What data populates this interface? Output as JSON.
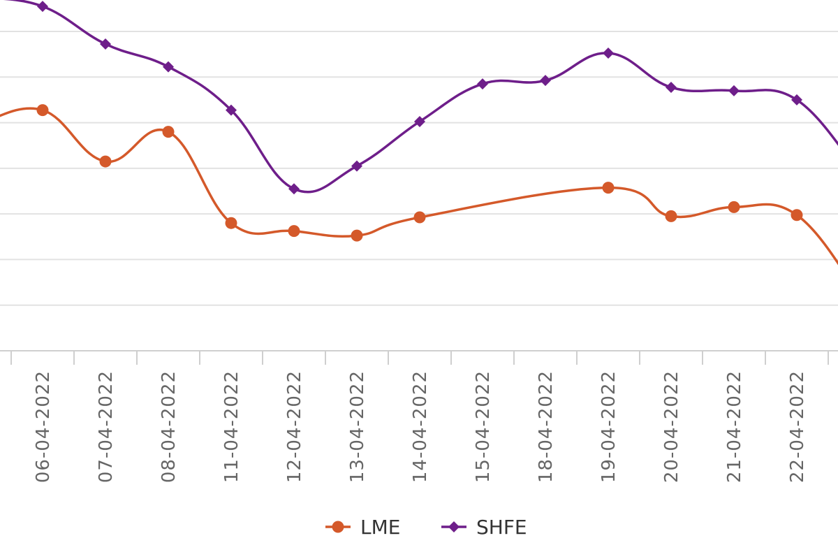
{
  "chart_data": {
    "type": "line",
    "categories": [
      "06-04-2022",
      "07-04-2022",
      "08-04-2022",
      "11-04-2022",
      "12-04-2022",
      "13-04-2022",
      "14-04-2022",
      "15-04-2022",
      "18-04-2022",
      "19-04-2022",
      "20-04-2022",
      "21-04-2022",
      "22-04-2022"
    ],
    "series": [
      {
        "name": "LME",
        "color": "#D4592A",
        "marker": "circle",
        "values": [
          12.55,
          10.3,
          11.6,
          7.6,
          7.25,
          7.05,
          7.85,
          null,
          null,
          9.15,
          7.9,
          8.3,
          7.95
        ],
        "edge_left": 11.95,
        "edge_right": 4.45
      },
      {
        "name": "SHFE",
        "color": "#6E1E8A",
        "marker": "diamond",
        "values": [
          17.1,
          15.45,
          14.45,
          12.55,
          9.1,
          10.1,
          12.05,
          13.7,
          13.85,
          15.05,
          13.55,
          13.4,
          13.0
        ],
        "edge_left": 17.5,
        "edge_right": 9.8
      }
    ],
    "ylim": [
      2,
      16
    ],
    "grid": true,
    "legend": "bottom-center"
  }
}
